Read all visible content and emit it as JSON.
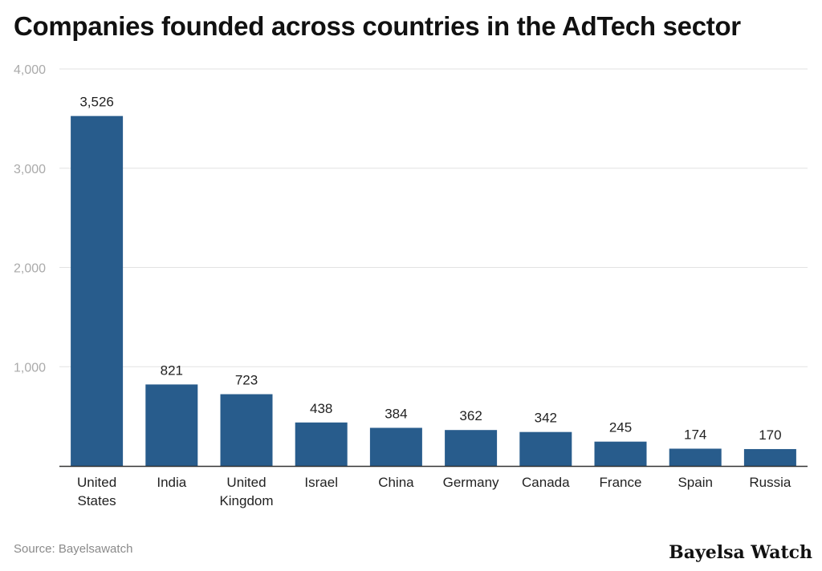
{
  "chart_data": {
    "type": "bar",
    "title": "Companies founded across countries in the AdTech sector",
    "categories": [
      [
        "United",
        "States"
      ],
      [
        "India"
      ],
      [
        "United",
        "Kingdom"
      ],
      [
        "Israel"
      ],
      [
        "China"
      ],
      [
        "Germany"
      ],
      [
        "Canada"
      ],
      [
        "France"
      ],
      [
        "Spain"
      ],
      [
        "Russia"
      ]
    ],
    "values": [
      3526,
      821,
      723,
      438,
      384,
      362,
      342,
      245,
      174,
      170
    ],
    "value_labels": [
      "3,526",
      "821",
      "723",
      "438",
      "384",
      "362",
      "342",
      "245",
      "174",
      "170"
    ],
    "ylim": [
      0,
      4000
    ],
    "yticks": [
      1000,
      2000,
      3000,
      4000
    ],
    "ytick_labels": [
      "1,000",
      "2,000",
      "3,000",
      "4,000"
    ],
    "grid": true,
    "bar_color": "#285c8c",
    "source": "Source: Bayelsawatch"
  },
  "brand": "Bayelsa Watch"
}
